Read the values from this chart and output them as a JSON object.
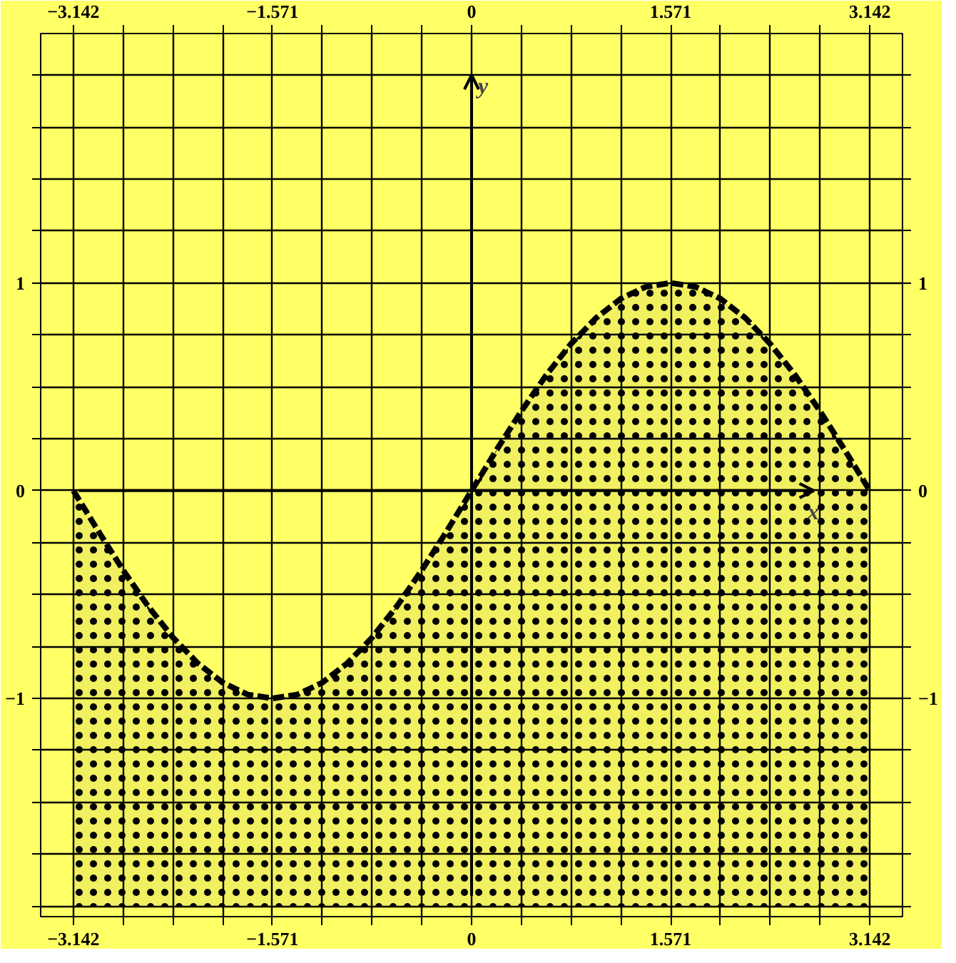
{
  "chart_data": {
    "type": "line",
    "xlabel": "x",
    "ylabel": "y",
    "x": [
      -3.142,
      -2.945,
      -2.749,
      -2.553,
      -2.356,
      -2.16,
      -1.963,
      -1.767,
      -1.571,
      -1.374,
      -1.178,
      -0.982,
      -0.785,
      -0.589,
      -0.393,
      -0.196,
      0,
      0.196,
      0.393,
      0.589,
      0.785,
      0.982,
      1.178,
      1.374,
      1.571,
      1.767,
      1.963,
      2.16,
      2.356,
      2.553,
      2.749,
      2.945,
      3.142
    ],
    "series": [
      {
        "color": "#000000",
        "line_style": "dashed",
        "lower": [
          -2,
          -2,
          -2,
          -2,
          -2,
          -2,
          -2,
          -2,
          -2,
          -2,
          -2,
          -2,
          -2,
          -2,
          -2,
          -2,
          -2,
          -2,
          -2,
          -2,
          -2,
          -2,
          -2,
          -2,
          -2,
          -2,
          -2,
          -2,
          -2,
          -2,
          -2,
          -2,
          -2
        ],
        "upper": [
          0,
          -0.195,
          -0.383,
          -0.556,
          -0.707,
          -0.831,
          -0.924,
          -0.981,
          -1,
          -0.981,
          -0.924,
          -0.831,
          -0.707,
          -0.556,
          -0.383,
          -0.195,
          0,
          0.195,
          0.383,
          0.556,
          0.707,
          0.831,
          0.924,
          0.981,
          1,
          0.981,
          0.924,
          0.831,
          0.707,
          0.556,
          0.383,
          0.195,
          0
        ],
        "values": [
          0,
          -0.195,
          -0.383,
          -0.556,
          -0.707,
          -0.831,
          -0.924,
          -0.981,
          -1,
          -0.981,
          -0.924,
          -0.831,
          -0.707,
          -0.556,
          -0.383,
          -0.195,
          0,
          0.195,
          0.383,
          0.556,
          0.707,
          0.831,
          0.924,
          0.981,
          1,
          0.981,
          0.924,
          0.831,
          0.707,
          0.556,
          0.383,
          0.195,
          0
        ]
      }
    ],
    "xlim": [
      -3.4,
      3.4
    ],
    "ylim": [
      -2.05,
      2.2
    ],
    "xticks": [
      {
        "value": -3.142,
        "label": "−3.142"
      },
      {
        "value": -2.749,
        "label": null
      },
      {
        "value": -2.356,
        "label": null
      },
      {
        "value": -1.963,
        "label": null
      },
      {
        "value": -1.571,
        "label": "−1.571"
      },
      {
        "value": -1.178,
        "label": null
      },
      {
        "value": -0.785,
        "label": null
      },
      {
        "value": -0.393,
        "label": null
      },
      0,
      {
        "value": 0.393,
        "label": null
      },
      {
        "value": 0.785,
        "label": null
      },
      {
        "value": 1.178,
        "label": null
      },
      {
        "value": 1.571,
        "label": "1.571"
      },
      {
        "value": 1.963,
        "label": null
      },
      {
        "value": 2.356,
        "label": null
      },
      {
        "value": 2.749,
        "label": null
      },
      {
        "value": 3.142,
        "label": "3.142"
      }
    ],
    "x2lim": [
      -3.4,
      3.4
    ],
    "x2ticks": [
      {
        "value": -3.142,
        "label": "−3.142"
      },
      {
        "value": -2.749,
        "label": null
      },
      {
        "value": -2.356,
        "label": null
      },
      {
        "value": -1.963,
        "label": null
      },
      {
        "value": -1.571,
        "label": "−1.571"
      },
      {
        "value": -1.178,
        "label": null
      },
      {
        "value": -0.785,
        "label": null
      },
      {
        "value": -0.393,
        "label": null
      },
      0,
      {
        "value": 0.393,
        "label": null
      },
      {
        "value": 0.785,
        "label": null
      },
      {
        "value": 1.178,
        "label": null
      },
      {
        "value": 1.571,
        "label": "1.571"
      },
      {
        "value": 1.963,
        "label": null
      },
      {
        "value": 2.356,
        "label": null
      },
      {
        "value": 2.749,
        "label": null
      },
      {
        "value": 3.142,
        "label": "3.142"
      }
    ],
    "yticks": [
      {
        "value": -2,
        "label": null
      },
      {
        "value": -1.75,
        "label": null
      },
      {
        "value": -1.5,
        "label": null
      },
      {
        "value": -1.25,
        "label": null
      },
      {
        "value": -1,
        "label": "−1"
      },
      {
        "value": -0.75,
        "label": null
      },
      {
        "value": -0.5,
        "label": null
      },
      {
        "value": -0.25,
        "label": null
      },
      0,
      {
        "value": 0.25,
        "label": null
      },
      {
        "value": 0.5,
        "label": null
      },
      {
        "value": 0.75,
        "label": null
      },
      1,
      {
        "value": 1.25,
        "label": null
      },
      {
        "value": 1.5,
        "label": null
      },
      {
        "value": 1.75,
        "label": null
      },
      {
        "value": 2,
        "label": null
      }
    ],
    "y2lim": [
      -2.05,
      2.2
    ],
    "y2ticks": [
      {
        "value": -2,
        "label": null
      },
      {
        "value": -1.75,
        "label": null
      },
      {
        "value": -1.5,
        "label": null
      },
      {
        "value": -1.25,
        "label": null
      },
      {
        "value": -1,
        "label": "−1"
      },
      {
        "value": -0.75,
        "label": null
      },
      {
        "value": -0.5,
        "label": null
      },
      {
        "value": -0.25,
        "label": null
      },
      0,
      {
        "value": 0.25,
        "label": null
      },
      {
        "value": 0.5,
        "label": null
      },
      {
        "value": 0.75,
        "label": null
      },
      1,
      {
        "value": 1.25,
        "label": null
      },
      {
        "value": 1.5,
        "label": null
      },
      {
        "value": 1.75,
        "label": null
      },
      {
        "value": 2,
        "label": null
      }
    ],
    "grid": true
  }
}
